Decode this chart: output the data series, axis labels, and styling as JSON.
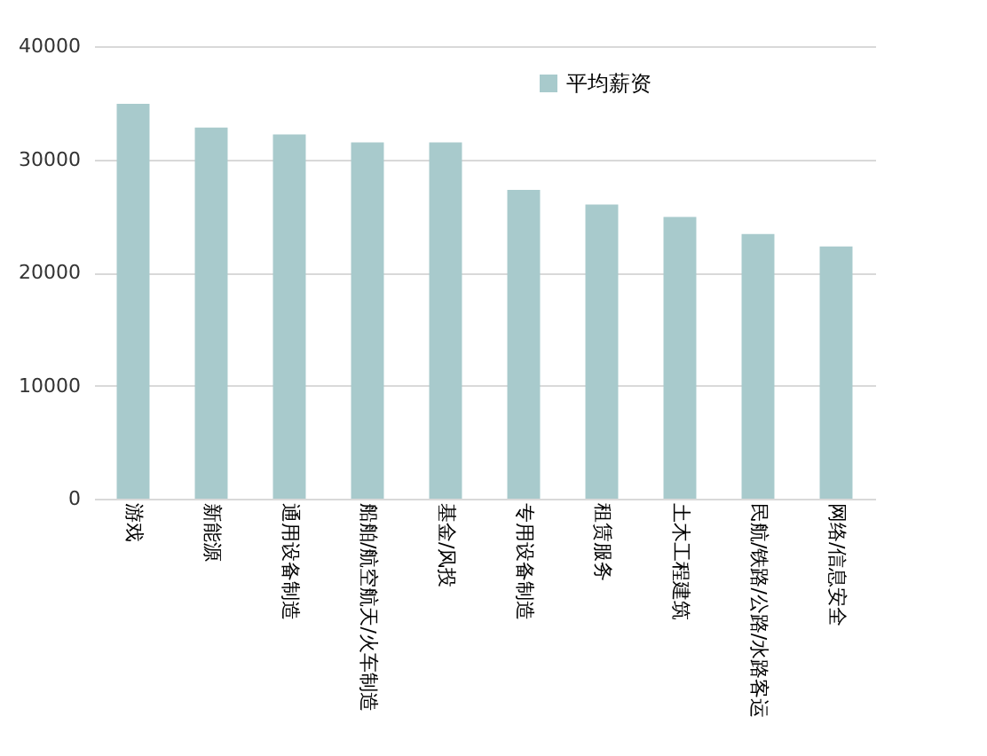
{
  "chart_data": {
    "type": "bar",
    "categories": [
      "游戏",
      "新能源",
      "通用设备制造",
      "船舶/航空航天/火车制造",
      "基金/风投",
      "专用设备制造",
      "租赁服务",
      "土木工程建筑",
      "民航/铁路/公路/水路客运",
      "网络/信息安全"
    ],
    "series": [
      {
        "name": "平均薪资",
        "color": "#a8cacc",
        "values": [
          34900,
          32800,
          32200,
          31500,
          31500,
          27300,
          26000,
          24900,
          23400,
          22300
        ]
      }
    ],
    "ylim": [
      0,
      40000
    ],
    "yticks": [
      0,
      10000,
      20000,
      30000,
      40000
    ],
    "grid": "y",
    "legend": "top right"
  }
}
